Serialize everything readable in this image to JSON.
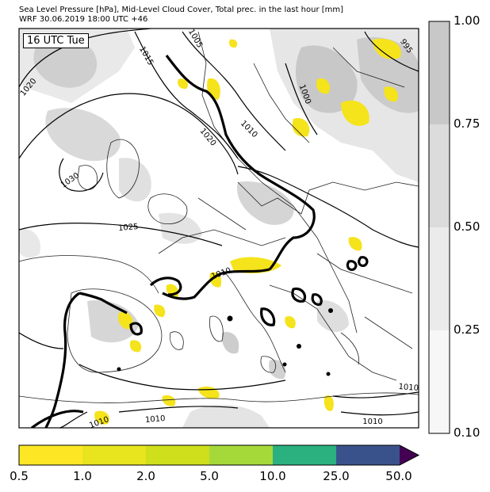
{
  "title": {
    "line1": "Sea Level Pressure [hPa], Mid-Level Cloud Cover, Total prec. in the last hour [mm]",
    "line2": "WRF 30.06.2019 18:00 UTC +46"
  },
  "time_label": "16 UTC Tue",
  "isobar_labels": [
    "1015",
    "1005",
    "995",
    "1020",
    "1000",
    "1010",
    "1020",
    "1030",
    "1025",
    "1010",
    "1010",
    "1010",
    "1010"
  ],
  "cloud_colorbar": {
    "ticks": [
      "1.00",
      "0.75",
      "0.50",
      "0.25",
      "0.10"
    ],
    "colors": [
      "#c8c8c8",
      "#dcdcdc",
      "#ebebeb",
      "#f7f7f7"
    ]
  },
  "precip_colorbar": {
    "ticks": [
      "0.5",
      "1.0",
      "2.0",
      "5.0",
      "10.0",
      "25.0",
      "50.0"
    ],
    "colors": [
      "#fde725",
      "#e8e41d",
      "#cfdf1b",
      "#a5d93a",
      "#2bb07f",
      "#3a528b",
      "#440154"
    ]
  },
  "colors": {
    "precip_main": "#f5e31c",
    "cloud_dark": "#c3c3c3",
    "cloud_light": "#dedede"
  }
}
